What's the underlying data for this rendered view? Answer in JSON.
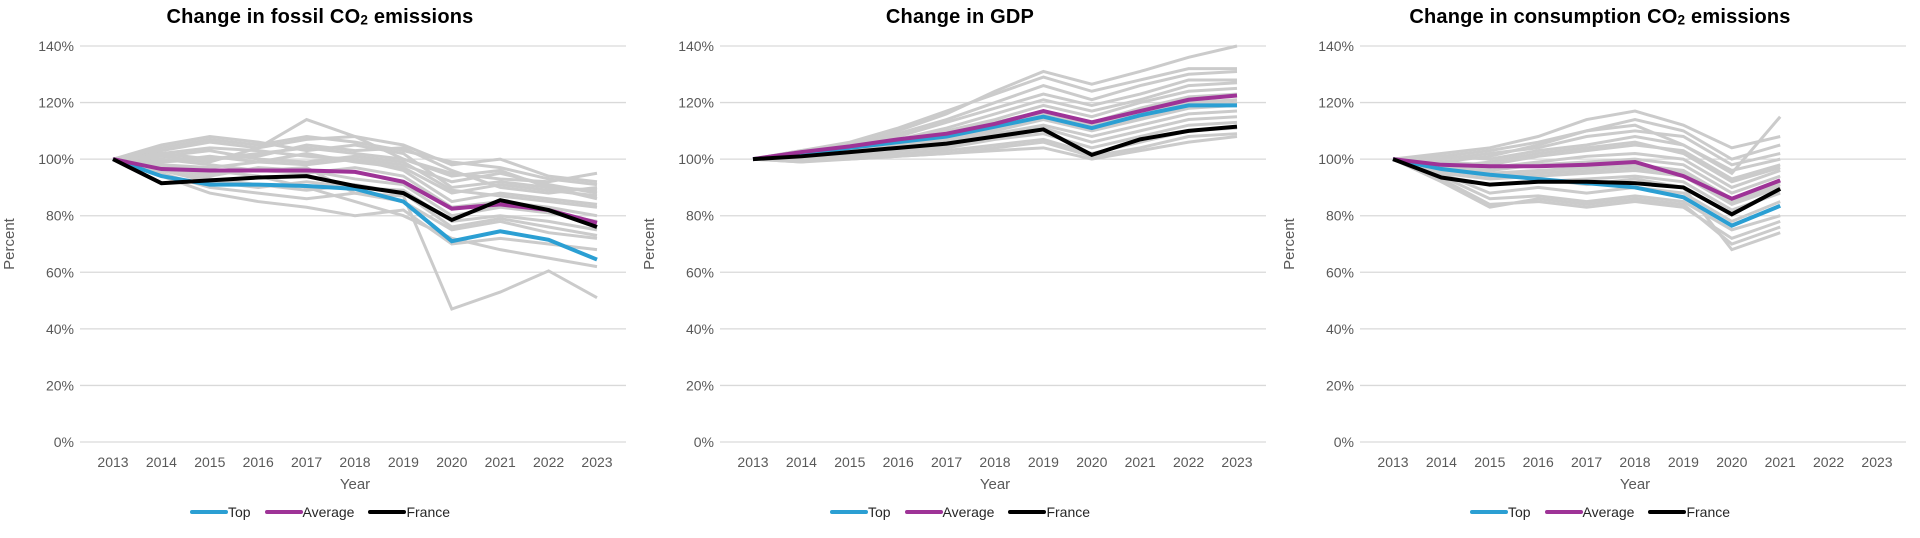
{
  "figure_title": "",
  "colors": {
    "grid": "#D9D9D9",
    "axis_text": "#595959",
    "background_series": "#CBCBCB",
    "top": "#2B9FD3",
    "average": "#9E3397",
    "france": "#000000",
    "title_text": "#000000",
    "legend_text": "#262626"
  },
  "y_axis": {
    "label": "Percent",
    "tick_labels": [
      "0%",
      "20%",
      "40%",
      "60%",
      "80%",
      "100%",
      "120%",
      "140%"
    ],
    "min": 0,
    "max": 140,
    "step": 20
  },
  "x_axis": {
    "label": "Year",
    "years": [
      "2013",
      "2014",
      "2015",
      "2016",
      "2017",
      "2018",
      "2019",
      "2020",
      "2021",
      "2022",
      "2023"
    ]
  },
  "chart_data": [
    {
      "type": "line",
      "title_parts": {
        "pre": "Change in fossil CO",
        "sub": "2",
        "post": " emissions"
      },
      "xlabel": "Year",
      "ylabel": "Percent",
      "ylim": [
        0,
        140
      ],
      "grid": true,
      "legend_position": "bottom",
      "x": [
        "2013",
        "2014",
        "2015",
        "2016",
        "2017",
        "2018",
        "2019",
        "2020",
        "2021",
        "2022",
        "2023"
      ],
      "series": [
        {
          "name": "Top",
          "color": "#2B9FD3",
          "values": [
            100,
            94,
            91,
            91,
            90.5,
            89.5,
            85,
            71,
            74.5,
            71.5,
            64.5
          ]
        },
        {
          "name": "Average",
          "color": "#9E3397",
          "values": [
            100,
            96.5,
            96,
            96,
            96,
            95.5,
            92,
            82.5,
            84,
            82,
            77.5
          ]
        },
        {
          "name": "France",
          "color": "#000000",
          "values": [
            100,
            91.5,
            92.5,
            93.5,
            94,
            90.5,
            88,
            78.5,
            85.5,
            82,
            76
          ]
        }
      ],
      "background_series": [
        [
          100,
          103,
          106,
          104,
          107,
          108,
          100,
          95,
          93,
          92,
          95
        ],
        [
          100,
          101,
          99,
          104,
          114,
          108,
          105,
          98,
          100,
          94,
          92
        ],
        [
          100,
          105,
          108,
          106,
          103,
          105,
          102,
          90,
          92,
          90,
          89
        ],
        [
          100,
          102,
          100,
          101,
          105,
          103,
          104,
          96,
          90,
          88,
          90
        ],
        [
          100,
          99,
          101,
          99,
          102,
          99,
          97,
          88,
          91,
          89,
          87
        ],
        [
          100,
          98,
          97,
          99,
          98,
          100,
          96,
          85,
          88,
          86,
          84
        ],
        [
          100,
          100,
          98,
          96,
          95,
          97,
          94,
          83,
          85,
          83,
          80
        ],
        [
          100,
          97,
          94,
          97,
          96,
          93,
          91,
          80,
          83,
          81,
          78
        ],
        [
          100,
          96,
          92,
          90,
          92,
          90,
          89,
          78,
          80,
          78,
          75
        ],
        [
          100,
          95,
          90,
          88,
          86,
          88,
          85,
          75,
          78,
          74,
          72
        ],
        [
          100,
          94,
          88,
          85,
          83,
          80,
          82,
          70,
          72,
          70,
          68
        ],
        [
          100,
          97,
          95,
          96,
          97,
          88,
          87,
          47,
          53,
          60.5,
          51
        ],
        [
          100,
          102,
          104,
          103,
          101,
          100,
          98,
          92,
          95,
          91,
          88
        ],
        [
          100,
          98,
          96,
          94,
          90,
          85,
          80,
          72,
          68,
          65,
          62
        ],
        [
          100,
          104,
          107,
          105,
          108,
          106,
          103,
          99,
          97,
          93,
          91
        ],
        [
          100,
          96,
          93,
          91,
          89,
          91,
          88,
          76,
          79,
          76,
          73
        ],
        [
          100,
          101,
          103,
          100,
          99,
          101,
          99,
          89,
          87,
          85,
          83
        ],
        [
          100,
          99,
          100,
          102,
          104,
          102,
          100,
          94,
          96,
          90,
          86
        ]
      ]
    },
    {
      "type": "line",
      "title_parts": {
        "pre": "Change in GDP",
        "sub": "",
        "post": ""
      },
      "xlabel": "Year",
      "ylabel": "Percent",
      "ylim": [
        0,
        140
      ],
      "grid": true,
      "legend_position": "bottom",
      "x": [
        "2013",
        "2014",
        "2015",
        "2016",
        "2017",
        "2018",
        "2019",
        "2020",
        "2021",
        "2022",
        "2023"
      ],
      "series": [
        {
          "name": "Top",
          "color": "#2B9FD3",
          "values": [
            100,
            102,
            104,
            106,
            108,
            111.5,
            115,
            111,
            115.5,
            119,
            119
          ]
        },
        {
          "name": "Average",
          "color": "#9E3397",
          "values": [
            100,
            102.5,
            104.5,
            107,
            109,
            112.5,
            117,
            113,
            117,
            121,
            122.5
          ]
        },
        {
          "name": "France",
          "color": "#000000",
          "values": [
            100,
            101,
            102.5,
            104,
            105.5,
            108,
            110.5,
            101.5,
            107,
            110,
            111.5
          ]
        }
      ],
      "background_series": [
        [
          100,
          102,
          105,
          110,
          116,
          124,
          131,
          126.5,
          131,
          136,
          140
        ],
        [
          100,
          103,
          106,
          111,
          117,
          123,
          129,
          124,
          128,
          132,
          132
        ],
        [
          100,
          102,
          105,
          109,
          114,
          120,
          126,
          121,
          126,
          130,
          131
        ],
        [
          100,
          103,
          105,
          108,
          113,
          118,
          123,
          119,
          123,
          128,
          128
        ],
        [
          100,
          102,
          104,
          107,
          111,
          116,
          121,
          117,
          121,
          126,
          127
        ],
        [
          100,
          101,
          103,
          106,
          110,
          114,
          119,
          115,
          120,
          124,
          125
        ],
        [
          100,
          102,
          104,
          106,
          109,
          113,
          117,
          113,
          118,
          122,
          123
        ],
        [
          100,
          101,
          103,
          105,
          108,
          112,
          116,
          112,
          116,
          120,
          121
        ],
        [
          100,
          101,
          102,
          104,
          107,
          110,
          114,
          110,
          114,
          118,
          119
        ],
        [
          100,
          100,
          102,
          104,
          106,
          109,
          112,
          108,
          112,
          116,
          117
        ],
        [
          100,
          101,
          102,
          103,
          105,
          108,
          111,
          106,
          110,
          114,
          115
        ],
        [
          100,
          100,
          101,
          103,
          104,
          107,
          109,
          104,
          108,
          112,
          113
        ],
        [
          100,
          99,
          101,
          102,
          103,
          105,
          107,
          102,
          106,
          110,
          111
        ],
        [
          100,
          100,
          100,
          101,
          102,
          104,
          106,
          101,
          104,
          108,
          109
        ],
        [
          100,
          99,
          100,
          101,
          102,
          103,
          104,
          100,
          103,
          106,
          108
        ],
        [
          100,
          101,
          103,
          105,
          107,
          111,
          115,
          111,
          115,
          119,
          120
        ]
      ]
    },
    {
      "type": "line",
      "title_parts": {
        "pre": "Change in consumption CO",
        "sub": "2",
        "post": " emissions"
      },
      "xlabel": "Year",
      "ylabel": "Percent",
      "ylim": [
        0,
        140
      ],
      "grid": true,
      "legend_position": "bottom",
      "x": [
        "2013",
        "2014",
        "2015",
        "2016",
        "2017",
        "2018",
        "2019",
        "2020",
        "2021",
        "2022",
        "2023"
      ],
      "series": [
        {
          "name": "Top",
          "color": "#2B9FD3",
          "values": [
            100,
            96.5,
            94.5,
            93,
            91.5,
            90,
            86.5,
            76.5,
            83.5
          ]
        },
        {
          "name": "Average",
          "color": "#9E3397",
          "values": [
            100,
            98,
            97.5,
            97.5,
            98,
            99,
            94,
            86,
            92.5
          ]
        },
        {
          "name": "France",
          "color": "#000000",
          "values": [
            100,
            93.5,
            91,
            92,
            92,
            91.5,
            90,
            80.5,
            89.5
          ]
        }
      ],
      "background_series": [
        [
          100,
          99,
          101,
          105,
          110,
          112,
          105,
          95,
          115
        ],
        [
          100,
          102,
          104,
          108,
          114,
          117,
          112,
          104,
          108
        ],
        [
          100,
          101,
          103,
          106,
          110,
          114,
          110,
          100,
          105
        ],
        [
          100,
          100,
          102,
          104,
          108,
          110,
          108,
          98,
          102
        ],
        [
          100,
          101,
          100,
          103,
          105,
          108,
          105,
          96,
          100
        ],
        [
          100,
          99,
          98,
          101,
          103,
          105,
          103,
          93,
          98
        ],
        [
          100,
          98,
          97,
          99,
          101,
          102,
          100,
          90,
          96
        ],
        [
          100,
          97,
          96,
          98,
          99,
          100,
          98,
          88,
          94
        ],
        [
          100,
          96,
          95,
          96,
          97,
          98,
          96,
          86,
          92
        ],
        [
          100,
          95,
          93,
          94,
          95,
          96,
          94,
          84,
          90
        ],
        [
          100,
          94,
          91,
          92,
          93,
          94,
          92,
          82,
          88
        ],
        [
          100,
          95,
          88,
          90,
          88,
          90,
          88,
          78,
          85
        ],
        [
          100,
          94,
          86,
          87,
          85,
          87,
          85,
          75,
          80
        ],
        [
          100,
          93,
          84,
          85,
          83,
          85,
          83,
          72,
          78
        ],
        [
          100,
          92,
          83,
          86,
          84,
          86,
          84,
          70,
          76
        ],
        [
          100,
          96,
          94,
          95,
          96,
          97,
          95,
          85,
          91
        ],
        [
          100,
          97,
          99,
          102,
          104,
          106,
          102,
          92,
          97
        ],
        [
          100,
          98,
          95,
          93,
          91,
          93,
          90,
          68,
          74
        ]
      ]
    }
  ]
}
